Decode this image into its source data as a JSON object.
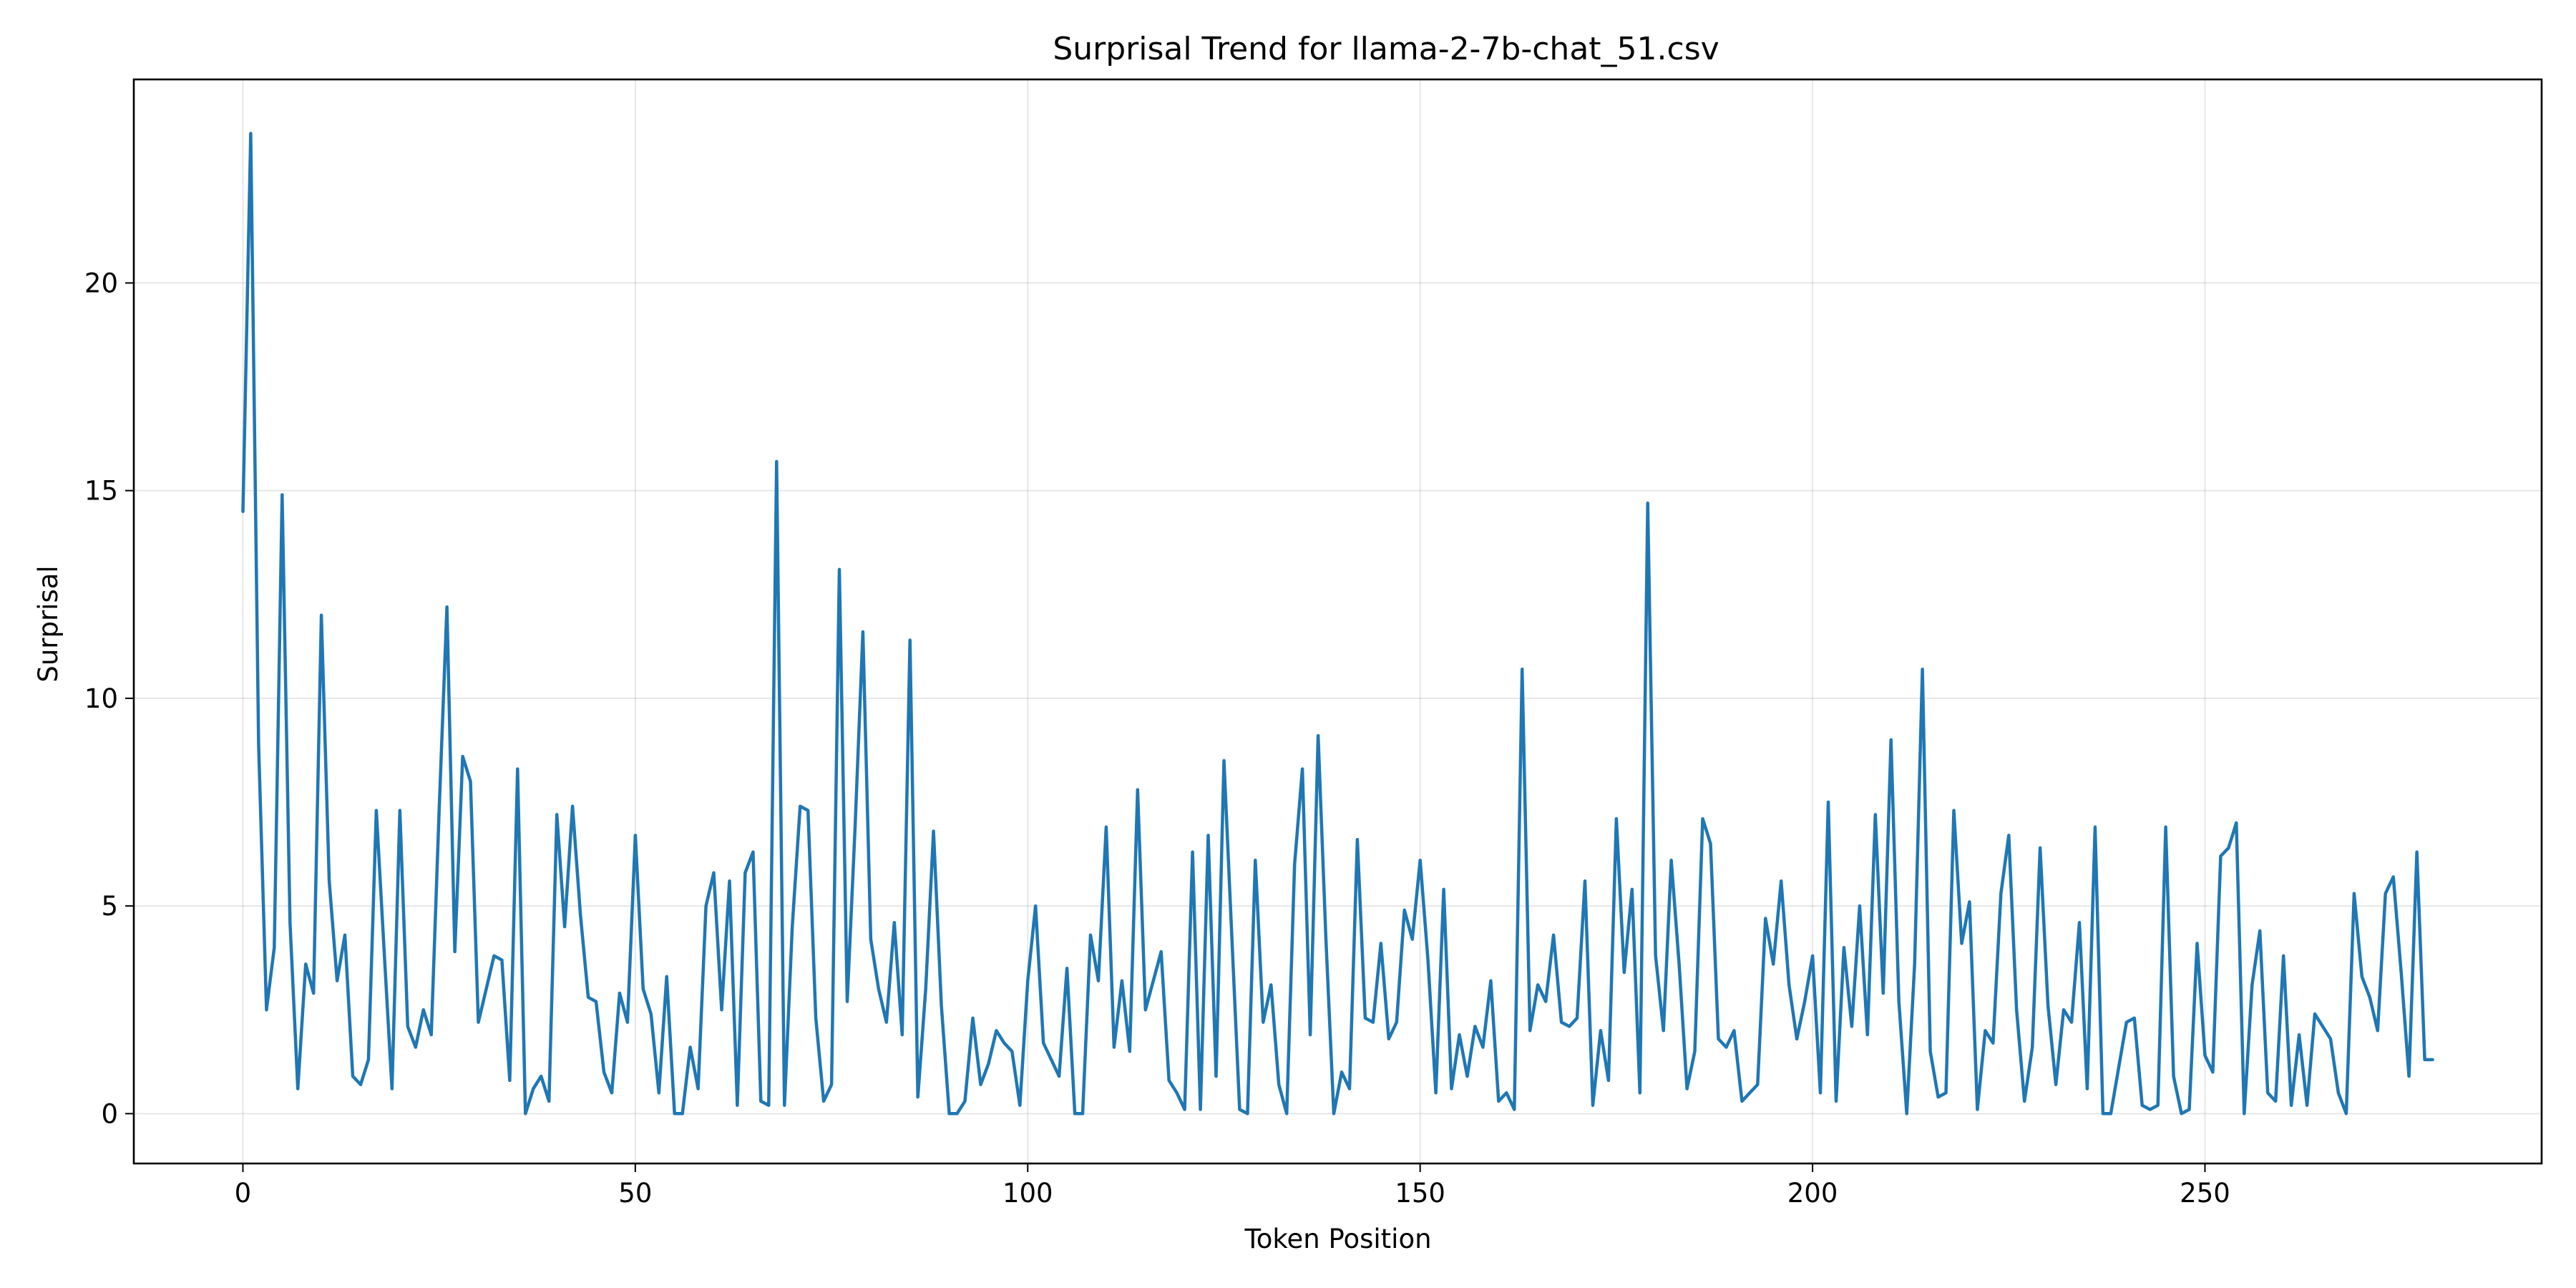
{
  "chart_data": {
    "type": "line",
    "title": "Surprisal Trend for llama-2-7b-chat_51.csv",
    "xlabel": "Token Position",
    "ylabel": "Surprisal",
    "xlim": [
      -13.9,
      292.9
    ],
    "ylim": [
      -1.2,
      24.9
    ],
    "xticks": [
      0,
      50,
      100,
      150,
      200,
      250
    ],
    "yticks": [
      0,
      5,
      10,
      15,
      20
    ],
    "grid": true,
    "legend": "none",
    "series": [
      {
        "color": "#1f77b4",
        "x": [
          0,
          1,
          2,
          3,
          4,
          5,
          6,
          7,
          8,
          9,
          10,
          11,
          12,
          13,
          14,
          15,
          16,
          17,
          18,
          19,
          20,
          21,
          22,
          23,
          24,
          25,
          26,
          27,
          28,
          29,
          30,
          31,
          32,
          33,
          34,
          35,
          36,
          37,
          38,
          39,
          40,
          41,
          42,
          43,
          44,
          45,
          46,
          47,
          48,
          49,
          50,
          51,
          52,
          53,
          54,
          55,
          56,
          57,
          58,
          59,
          60,
          61,
          62,
          63,
          64,
          65,
          66,
          67,
          68,
          69,
          70,
          71,
          72,
          73,
          74,
          75,
          76,
          77,
          78,
          79,
          80,
          81,
          82,
          83,
          84,
          85,
          86,
          87,
          88,
          89,
          90,
          91,
          92,
          93,
          94,
          95,
          96,
          97,
          98,
          99,
          100,
          101,
          102,
          103,
          104,
          105,
          106,
          107,
          108,
          109,
          110,
          111,
          112,
          113,
          114,
          115,
          116,
          117,
          118,
          119,
          120,
          121,
          122,
          123,
          124,
          125,
          126,
          127,
          128,
          129,
          130,
          131,
          132,
          133,
          134,
          135,
          136,
          137,
          138,
          139,
          140,
          141,
          142,
          143,
          144,
          145,
          146,
          147,
          148,
          149,
          150,
          151,
          152,
          153,
          154,
          155,
          156,
          157,
          158,
          159,
          160,
          161,
          162,
          163,
          164,
          165,
          166,
          167,
          168,
          169,
          170,
          171,
          172,
          173,
          174,
          175,
          176,
          177,
          178,
          179,
          180,
          181,
          182,
          183,
          184,
          185,
          186,
          187,
          188,
          189,
          190,
          191,
          192,
          193,
          194,
          195,
          196,
          197,
          198,
          199,
          200,
          201,
          202,
          203,
          204,
          205,
          206,
          207,
          208,
          209,
          210,
          211,
          212,
          213,
          214,
          215,
          216,
          217,
          218,
          219,
          220,
          221,
          222,
          223,
          224,
          225,
          226,
          227,
          228,
          229,
          230,
          231,
          232,
          233,
          234,
          235,
          236,
          237,
          238,
          239,
          240,
          241,
          242,
          243,
          244,
          245,
          246,
          247,
          248,
          249,
          250,
          251,
          252,
          253,
          254,
          255,
          256,
          257,
          258,
          259,
          260,
          261,
          262,
          263,
          264,
          265,
          266,
          267,
          268,
          269,
          270,
          271,
          272,
          273,
          274,
          275,
          276,
          277,
          278,
          279
        ],
        "values": [
          14.5,
          23.6,
          8.9,
          2.5,
          4.0,
          14.9,
          4.6,
          0.6,
          3.6,
          2.9,
          12.0,
          5.6,
          3.2,
          4.3,
          0.9,
          0.7,
          1.3,
          7.3,
          3.9,
          0.6,
          7.3,
          2.1,
          1.6,
          2.5,
          1.9,
          7.3,
          12.2,
          3.9,
          8.6,
          8.0,
          2.2,
          3.0,
          3.8,
          3.7,
          0.8,
          8.3,
          0.0,
          0.6,
          0.9,
          0.3,
          7.2,
          4.5,
          7.4,
          4.8,
          2.8,
          2.7,
          1.0,
          0.5,
          2.9,
          2.2,
          6.7,
          3.0,
          2.4,
          0.5,
          3.3,
          0.0,
          0.0,
          1.6,
          0.6,
          5.0,
          5.8,
          2.5,
          5.6,
          0.2,
          5.8,
          6.3,
          0.3,
          0.2,
          15.7,
          0.2,
          4.5,
          7.4,
          7.3,
          2.3,
          0.3,
          0.7,
          13.1,
          2.7,
          6.9,
          11.6,
          4.2,
          3.0,
          2.2,
          4.6,
          1.9,
          11.4,
          0.4,
          3.0,
          6.8,
          2.6,
          0.0,
          0.0,
          0.3,
          2.3,
          0.7,
          1.2,
          2.0,
          1.7,
          1.5,
          0.2,
          3.2,
          5.0,
          1.7,
          1.3,
          0.9,
          3.5,
          0.0,
          0.0,
          4.3,
          3.2,
          6.9,
          1.6,
          3.2,
          1.5,
          7.8,
          2.5,
          3.2,
          3.9,
          0.8,
          0.5,
          0.1,
          6.3,
          0.1,
          6.7,
          0.9,
          8.5,
          4.3,
          0.1,
          0.0,
          6.1,
          2.2,
          3.1,
          0.7,
          0.0,
          6.0,
          8.3,
          1.9,
          9.1,
          4.2,
          0.0,
          1.0,
          0.6,
          6.6,
          2.3,
          2.2,
          4.1,
          1.8,
          2.2,
          4.9,
          4.2,
          6.1,
          3.7,
          0.5,
          5.4,
          0.6,
          1.9,
          0.9,
          2.1,
          1.6,
          3.2,
          0.3,
          0.5,
          0.1,
          10.7,
          2.0,
          3.1,
          2.7,
          4.3,
          2.2,
          2.1,
          2.3,
          5.6,
          0.2,
          2.0,
          0.8,
          7.1,
          3.4,
          5.4,
          0.5,
          14.7,
          3.8,
          2.0,
          6.1,
          3.6,
          0.6,
          1.5,
          7.1,
          6.5,
          1.8,
          1.6,
          2.0,
          0.3,
          0.5,
          0.7,
          4.7,
          3.6,
          5.6,
          3.1,
          1.8,
          2.7,
          3.8,
          0.5,
          7.5,
          0.3,
          4.0,
          2.1,
          5.0,
          1.9,
          7.2,
          2.9,
          9.0,
          2.7,
          0.0,
          3.6,
          10.7,
          1.5,
          0.4,
          0.5,
          7.3,
          4.1,
          5.1,
          0.1,
          2.0,
          1.7,
          5.3,
          6.7,
          2.5,
          0.3,
          1.6,
          6.4,
          2.6,
          0.7,
          2.5,
          2.2,
          4.6,
          0.6,
          6.9,
          0.0,
          0.0,
          1.1,
          2.2,
          2.3,
          0.2,
          0.1,
          0.2,
          6.9,
          0.9,
          0.0,
          0.1,
          4.1,
          1.4,
          1.0,
          6.2,
          6.4,
          7.0,
          0.0,
          3.1,
          4.4,
          0.5,
          0.3,
          3.8,
          0.2,
          1.9,
          0.2,
          2.4,
          2.1,
          1.8,
          0.5,
          0.0,
          5.3,
          3.3,
          2.8,
          2.0,
          5.3,
          5.7,
          3.4,
          0.9,
          6.3,
          1.3,
          1.3
        ]
      }
    ]
  }
}
